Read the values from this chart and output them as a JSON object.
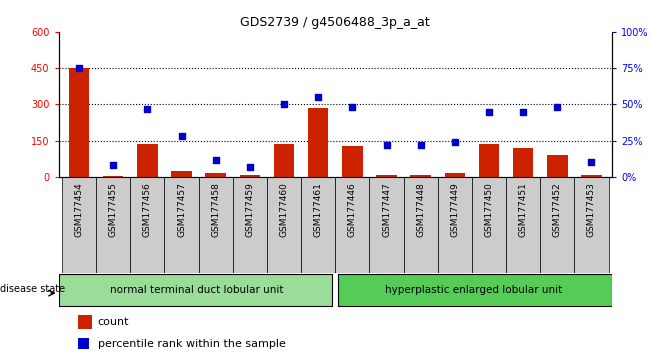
{
  "title": "GDS2739 / g4506488_3p_a_at",
  "samples": [
    "GSM177454",
    "GSM177455",
    "GSM177456",
    "GSM177457",
    "GSM177458",
    "GSM177459",
    "GSM177460",
    "GSM177461",
    "GSM177446",
    "GSM177447",
    "GSM177448",
    "GSM177449",
    "GSM177450",
    "GSM177451",
    "GSM177452",
    "GSM177453"
  ],
  "counts": [
    450,
    5,
    135,
    25,
    15,
    10,
    135,
    285,
    130,
    10,
    10,
    15,
    135,
    120,
    90,
    10
  ],
  "percentiles": [
    75,
    8,
    47,
    28,
    12,
    7,
    50,
    55,
    48,
    22,
    22,
    24,
    45,
    45,
    48,
    10
  ],
  "group1_label": "normal terminal duct lobular unit",
  "group2_label": "hyperplastic enlarged lobular unit",
  "group1_count": 8,
  "group2_count": 8,
  "left_ylim": [
    0,
    600
  ],
  "right_ylim": [
    0,
    100
  ],
  "left_yticks": [
    0,
    150,
    300,
    450,
    600
  ],
  "right_yticks": [
    0,
    25,
    50,
    75,
    100
  ],
  "right_yticklabels": [
    "0%",
    "25%",
    "50%",
    "75%",
    "100%"
  ],
  "hlines": [
    150,
    300,
    450
  ],
  "bar_color": "#cc2200",
  "dot_color": "#0000cc",
  "group1_color": "#99dd99",
  "group2_color": "#55cc55",
  "xtick_bg_color": "#cccccc",
  "legend_count_label": "count",
  "legend_pct_label": "percentile rank within the sample",
  "disease_state_label": "disease state"
}
